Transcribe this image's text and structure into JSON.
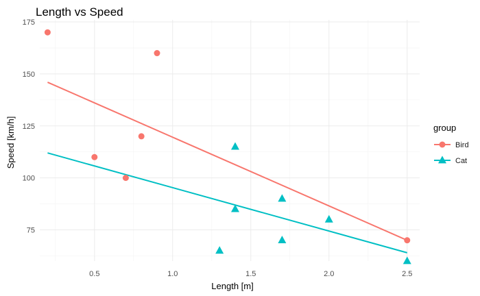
{
  "chart_data": {
    "type": "scatter",
    "title": "Length vs Speed",
    "xlabel": "Length [m]",
    "ylabel": "Speed [km/h]",
    "xlim": [
      0.15,
      2.58
    ],
    "ylim": [
      60,
      176
    ],
    "x_ticks": [
      0.5,
      1.0,
      1.5,
      2.0,
      2.5
    ],
    "x_tick_labels": [
      "0.5",
      "1.0",
      "1.5",
      "2.0",
      "2.5"
    ],
    "y_ticks": [
      75,
      100,
      125,
      150,
      175
    ],
    "y_tick_labels": [
      "75",
      "100",
      "125",
      "150",
      "175"
    ],
    "grid": true,
    "legend": {
      "title": "group",
      "position": "right"
    },
    "series": [
      {
        "name": "Bird",
        "color": "#F8766D",
        "marker": "circle",
        "points": [
          {
            "x": 0.2,
            "y": 170
          },
          {
            "x": 0.5,
            "y": 110
          },
          {
            "x": 0.7,
            "y": 100
          },
          {
            "x": 0.8,
            "y": 120
          },
          {
            "x": 0.9,
            "y": 160
          },
          {
            "x": 2.5,
            "y": 70
          }
        ],
        "trend": [
          {
            "x": 0.2,
            "y": 146
          },
          {
            "x": 2.5,
            "y": 70
          }
        ]
      },
      {
        "name": "Cat",
        "color": "#00BFC4",
        "marker": "triangle",
        "points": [
          {
            "x": 1.3,
            "y": 65
          },
          {
            "x": 1.4,
            "y": 115
          },
          {
            "x": 1.4,
            "y": 85
          },
          {
            "x": 1.7,
            "y": 90
          },
          {
            "x": 1.7,
            "y": 70
          },
          {
            "x": 2.0,
            "y": 80
          },
          {
            "x": 2.5,
            "y": 60
          }
        ],
        "trend": [
          {
            "x": 0.2,
            "y": 112
          },
          {
            "x": 2.5,
            "y": 64
          }
        ]
      }
    ]
  }
}
